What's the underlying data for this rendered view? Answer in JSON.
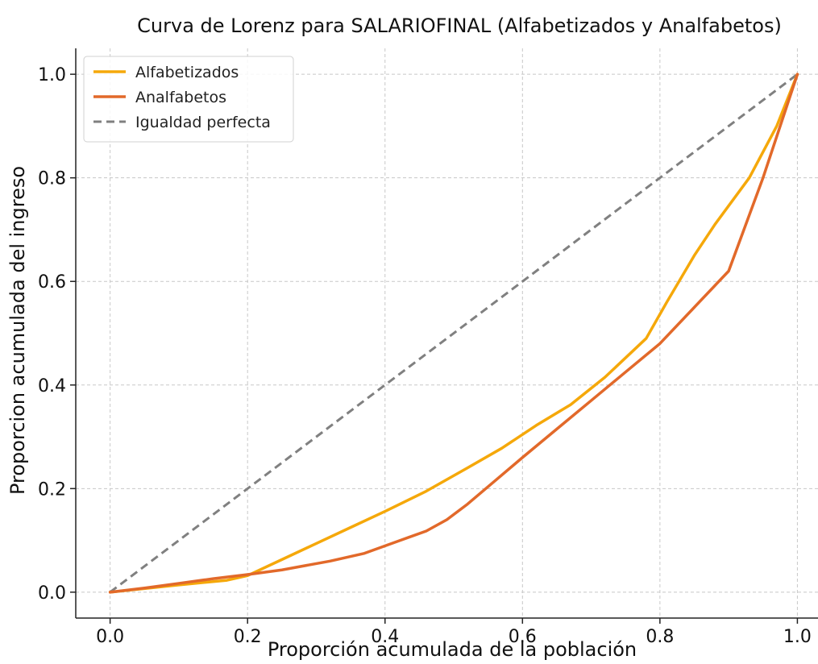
{
  "chart_data": {
    "type": "line",
    "title": "Curva de Lorenz para SALARIOFINAL (Alfabetizados y Analfabetos)",
    "xlabel": "Proporción acumulada de la población",
    "ylabel": "Proporcion acumulada del ingreso",
    "xlim": [
      -0.05,
      1.03
    ],
    "ylim": [
      -0.05,
      1.05
    ],
    "grid": true,
    "legend_position": "top-left",
    "xticks": [
      0.0,
      0.2,
      0.4,
      0.6,
      0.8,
      1.0
    ],
    "yticks": [
      0.0,
      0.2,
      0.4,
      0.6,
      0.8,
      1.0
    ],
    "xtick_labels": [
      "0.0",
      "0.2",
      "0.4",
      "0.6",
      "0.8",
      "1.0"
    ],
    "ytick_labels": [
      "0.0",
      "0.2",
      "0.4",
      "0.6",
      "0.8",
      "1.0"
    ],
    "series": [
      {
        "name": "Alfabetizados",
        "color": "#F5A80A",
        "style": "solid",
        "x": [
          0.0,
          0.05,
          0.1,
          0.17,
          0.2,
          0.25,
          0.3,
          0.35,
          0.4,
          0.46,
          0.52,
          0.57,
          0.62,
          0.67,
          0.72,
          0.78,
          0.81,
          0.85,
          0.88,
          0.93,
          0.97,
          1.0
        ],
        "y": [
          0.0,
          0.007,
          0.014,
          0.023,
          0.032,
          0.063,
          0.094,
          0.125,
          0.156,
          0.195,
          0.24,
          0.278,
          0.322,
          0.362,
          0.415,
          0.49,
          0.56,
          0.65,
          0.71,
          0.8,
          0.9,
          1.0
        ]
      },
      {
        "name": "Analfabetos",
        "color": "#E2692A",
        "style": "solid",
        "x": [
          0.0,
          0.05,
          0.1,
          0.15,
          0.2,
          0.25,
          0.32,
          0.37,
          0.42,
          0.46,
          0.49,
          0.52,
          0.56,
          0.6,
          0.65,
          0.7,
          0.75,
          0.8,
          0.85,
          0.9,
          0.95,
          1.0
        ],
        "y": [
          0.0,
          0.008,
          0.017,
          0.026,
          0.034,
          0.043,
          0.06,
          0.075,
          0.099,
          0.118,
          0.14,
          0.17,
          0.215,
          0.26,
          0.315,
          0.37,
          0.425,
          0.48,
          0.55,
          0.62,
          0.8,
          1.0
        ]
      },
      {
        "name": "Igualdad perfecta",
        "color": "#808080",
        "style": "dashed",
        "x": [
          0.0,
          1.0
        ],
        "y": [
          0.0,
          1.0
        ]
      }
    ]
  }
}
